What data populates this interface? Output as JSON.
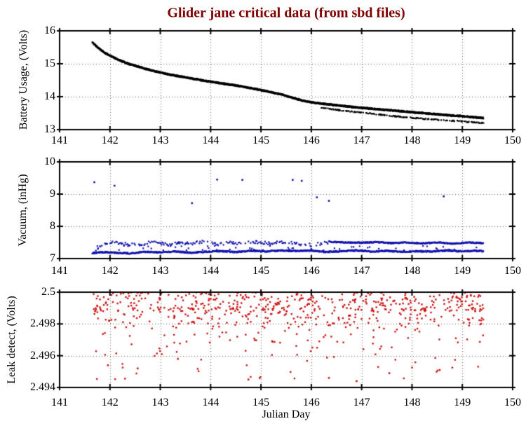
{
  "title": {
    "text": "Glider jane critical data (from sbd files)",
    "color": "#800000"
  },
  "xlabel": "Julian Day",
  "background": "#ffffff",
  "axis_color": "#000000",
  "grid_color": "#606060",
  "xticks": {
    "values": [
      141,
      142,
      143,
      144,
      145,
      146,
      147,
      148,
      149,
      150
    ],
    "labels": [
      "141",
      "142",
      "143",
      "144",
      "145",
      "146",
      "147",
      "148",
      "149",
      "150"
    ]
  },
  "chart_data": [
    {
      "id": "battery",
      "type": "scatter",
      "ylabel": "Battery Usage, (Volts)",
      "color": "#000000",
      "xlim": [
        141,
        150
      ],
      "ylim": [
        13,
        16
      ],
      "yticks": {
        "values": [
          16,
          15,
          14,
          13
        ],
        "labels": [
          "16",
          "15",
          "14",
          "13"
        ]
      },
      "grid_x": [
        142,
        143,
        144,
        145,
        146,
        147,
        148,
        149
      ],
      "grid_y": [
        15,
        14
      ],
      "data_x_range": [
        141.65,
        149.42
      ],
      "seed": 11,
      "series": [
        {
          "name": "battery-main-curve",
          "kind": "curve",
          "x_step": 0.004,
          "noise": 0.02,
          "density": 1,
          "anchors": [
            [
              141.65,
              15.65
            ],
            [
              141.72,
              15.55
            ],
            [
              141.8,
              15.44
            ],
            [
              141.9,
              15.33
            ],
            [
              142.0,
              15.25
            ],
            [
              142.1,
              15.17
            ],
            [
              142.2,
              15.1
            ],
            [
              142.35,
              15.01
            ],
            [
              142.5,
              14.94
            ],
            [
              142.7,
              14.85
            ],
            [
              142.9,
              14.77
            ],
            [
              143.1,
              14.7
            ],
            [
              143.3,
              14.64
            ],
            [
              143.6,
              14.56
            ],
            [
              143.9,
              14.48
            ],
            [
              144.2,
              14.41
            ],
            [
              144.5,
              14.34
            ],
            [
              144.8,
              14.26
            ],
            [
              145.1,
              14.17
            ],
            [
              145.4,
              14.07
            ],
            [
              145.6,
              13.98
            ],
            [
              145.8,
              13.89
            ],
            [
              146.0,
              13.83
            ],
            [
              146.2,
              13.79
            ],
            [
              146.5,
              13.74
            ],
            [
              146.8,
              13.69
            ],
            [
              147.1,
              13.65
            ],
            [
              147.4,
              13.61
            ],
            [
              147.7,
              13.57
            ],
            [
              148.0,
              13.53
            ],
            [
              148.3,
              13.49
            ],
            [
              148.6,
              13.45
            ],
            [
              148.9,
              13.42
            ],
            [
              149.2,
              13.38
            ],
            [
              149.42,
              13.35
            ]
          ]
        },
        {
          "name": "battery-lower-band",
          "kind": "curve",
          "x_step": 0.01,
          "noise": 0.015,
          "density": 0.5,
          "anchors": [
            [
              146.2,
              13.66
            ],
            [
              146.5,
              13.6
            ],
            [
              146.8,
              13.55
            ],
            [
              147.1,
              13.5
            ],
            [
              147.4,
              13.45
            ],
            [
              147.7,
              13.4
            ],
            [
              148.0,
              13.36
            ],
            [
              148.3,
              13.32
            ],
            [
              148.6,
              13.29
            ],
            [
              148.9,
              13.26
            ],
            [
              149.2,
              13.23
            ],
            [
              149.42,
              13.2
            ]
          ]
        }
      ],
      "outliers": []
    },
    {
      "id": "vacuum",
      "type": "scatter",
      "ylabel": "Vacuum, (inHg)",
      "color": "#1414B0",
      "xlim": [
        141,
        150
      ],
      "ylim": [
        7,
        10
      ],
      "yticks": {
        "values": [
          10,
          9,
          8,
          7
        ],
        "labels": [
          "10",
          "9",
          "8",
          "7"
        ]
      },
      "grid_x": [
        142,
        143,
        144,
        145,
        146,
        147,
        148,
        149
      ],
      "grid_y": [
        9,
        8
      ],
      "data_x_range": [
        141.65,
        149.42
      ],
      "seed": 23,
      "series": [
        {
          "name": "vacuum-lower-band",
          "kind": "curve",
          "x_step": 0.008,
          "noise": 0.02,
          "density": 1,
          "anchors": [
            [
              141.65,
              7.17
            ],
            [
              141.9,
              7.2
            ],
            [
              142.1,
              7.18
            ],
            [
              142.4,
              7.16
            ],
            [
              142.7,
              7.21
            ],
            [
              143.0,
              7.19
            ],
            [
              143.3,
              7.22
            ],
            [
              143.6,
              7.18
            ],
            [
              143.9,
              7.21
            ],
            [
              144.2,
              7.23
            ],
            [
              144.5,
              7.2
            ],
            [
              144.8,
              7.24
            ],
            [
              145.1,
              7.22
            ],
            [
              145.4,
              7.25
            ],
            [
              145.7,
              7.23
            ],
            [
              146.0,
              7.25
            ],
            [
              146.3,
              7.2
            ],
            [
              146.6,
              7.23
            ],
            [
              146.9,
              7.25
            ],
            [
              147.2,
              7.22
            ],
            [
              147.5,
              7.24
            ],
            [
              147.8,
              7.21
            ],
            [
              148.1,
              7.23
            ],
            [
              148.4,
              7.22
            ],
            [
              148.7,
              7.25
            ],
            [
              149.0,
              7.22
            ],
            [
              149.2,
              7.24
            ],
            [
              149.42,
              7.23
            ]
          ]
        },
        {
          "name": "vacuum-upper-band-sparse",
          "kind": "curve",
          "x_step": 0.015,
          "noise": 0.045,
          "density": 0.55,
          "anchors": [
            [
              141.75,
              7.35
            ],
            [
              141.85,
              7.45
            ],
            [
              142.0,
              7.5
            ],
            [
              142.2,
              7.48
            ],
            [
              142.4,
              7.44
            ],
            [
              142.6,
              7.4
            ],
            [
              142.8,
              7.52
            ],
            [
              143.0,
              7.47
            ],
            [
              143.2,
              7.42
            ],
            [
              143.4,
              7.5
            ],
            [
              143.6,
              7.46
            ],
            [
              143.8,
              7.52
            ],
            [
              144.0,
              7.49
            ],
            [
              144.2,
              7.44
            ],
            [
              144.4,
              7.5
            ],
            [
              144.6,
              7.47
            ],
            [
              144.8,
              7.52
            ],
            [
              145.0,
              7.5
            ],
            [
              145.2,
              7.46
            ],
            [
              145.4,
              7.52
            ],
            [
              145.6,
              7.49
            ],
            [
              145.8,
              7.45
            ],
            [
              146.0,
              7.42
            ],
            [
              146.2,
              7.47
            ],
            [
              146.35,
              7.5
            ]
          ]
        },
        {
          "name": "vacuum-upper-band-dense",
          "kind": "curve",
          "x_step": 0.008,
          "noise": 0.018,
          "density": 0.95,
          "anchors": [
            [
              146.35,
              7.52
            ],
            [
              146.7,
              7.5
            ],
            [
              147.0,
              7.49
            ],
            [
              147.3,
              7.51
            ],
            [
              147.6,
              7.48
            ],
            [
              147.9,
              7.5
            ],
            [
              148.2,
              7.47
            ],
            [
              148.5,
              7.5
            ],
            [
              148.8,
              7.46
            ],
            [
              149.1,
              7.5
            ],
            [
              149.42,
              7.48
            ]
          ]
        },
        {
          "name": "vacuum-mid-scatter",
          "kind": "curve",
          "x_step": 0.02,
          "noise": 0.08,
          "density": 0.15,
          "anchors": [
            [
              141.7,
              7.32
            ],
            [
              149.42,
              7.32
            ]
          ]
        }
      ],
      "outliers": [
        [
          141.69,
          9.37
        ],
        [
          142.09,
          9.26
        ],
        [
          143.63,
          8.72
        ],
        [
          144.13,
          9.45
        ],
        [
          144.63,
          9.44
        ],
        [
          145.63,
          9.44
        ],
        [
          145.81,
          9.41
        ],
        [
          146.11,
          8.9
        ],
        [
          146.35,
          8.79
        ],
        [
          148.63,
          8.93
        ]
      ]
    },
    {
      "id": "leak",
      "type": "scatter",
      "ylabel": "Leak detect, (Volts)",
      "color": "#CC1414",
      "xlim": [
        141,
        150
      ],
      "ylim": [
        2.494,
        2.5
      ],
      "yticks": {
        "values": [
          2.5,
          2.498,
          2.496,
          2.494
        ],
        "labels": [
          "2.5",
          "2.498",
          "2.496",
          "2.494"
        ]
      },
      "grid_x": [
        142,
        143,
        144,
        145,
        146,
        147,
        148,
        149
      ],
      "grid_y": [
        2.498,
        2.496
      ],
      "data_x_range": [
        141.66,
        149.42
      ],
      "seed": 37,
      "series": [
        {
          "name": "leak-random-scatter",
          "kind": "random",
          "n": 680,
          "xmin": 141.66,
          "xmax": 149.42,
          "bands": [
            {
              "p": 0.5,
              "ymin": 2.4988,
              "ymax": 2.5
            },
            {
              "p": 0.27,
              "ymin": 2.498,
              "ymax": 2.499
            },
            {
              "p": 0.15,
              "ymin": 2.4968,
              "ymax": 2.4982
            },
            {
              "p": 0.08,
              "ymin": 2.4945,
              "ymax": 2.497
            }
          ]
        }
      ],
      "outliers": [
        [
          141.96,
          2.4954
        ],
        [
          142.55,
          2.4952
        ],
        [
          143.35,
          2.4958
        ],
        [
          144.75,
          2.4945
        ],
        [
          146.35,
          2.4946
        ],
        [
          146.9,
          2.4944
        ],
        [
          147.55,
          2.4949
        ],
        [
          148.55,
          2.4951
        ],
        [
          149.15,
          2.4939
        ]
      ]
    }
  ]
}
